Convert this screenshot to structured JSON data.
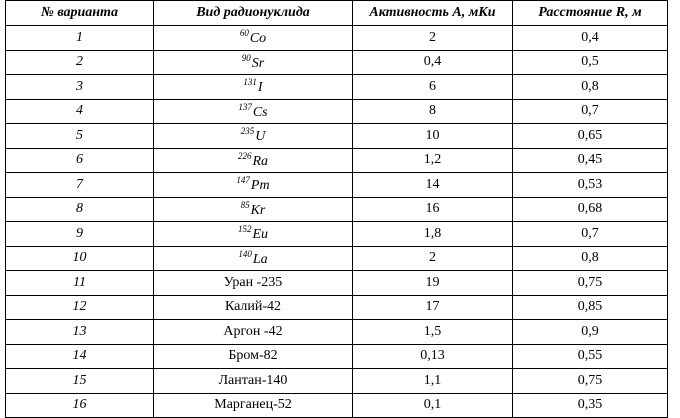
{
  "table": {
    "header": [
      "№ варианта",
      "Вид радионуклида",
      "Активность А, мКи",
      "Расстояние R, м"
    ],
    "rows": [
      {
        "n": "1",
        "mass": "60",
        "symbol": "Co",
        "activity": "2",
        "distance": "0,4"
      },
      {
        "n": "2",
        "mass": "90",
        "symbol": "Sr",
        "activity": "0,4",
        "distance": "0,5"
      },
      {
        "n": "3",
        "mass": "131",
        "symbol": "I",
        "activity": "6",
        "distance": "0,8"
      },
      {
        "n": "4",
        "mass": "137",
        "symbol": "Cs",
        "activity": "8",
        "distance": "0,7"
      },
      {
        "n": "5",
        "mass": "235",
        "symbol": "U",
        "activity": "10",
        "distance": "0,65"
      },
      {
        "n": "6",
        "mass": "226",
        "symbol": "Ra",
        "activity": "1,2",
        "distance": "0,45"
      },
      {
        "n": "7",
        "mass": "147",
        "symbol": "Pm",
        "activity": "14",
        "distance": "0,53"
      },
      {
        "n": "8",
        "mass": "85",
        "symbol": "Kr",
        "activity": "16",
        "distance": "0,68"
      },
      {
        "n": "9",
        "mass": "152",
        "symbol": "Eu",
        "activity": "1,8",
        "distance": "0,7"
      },
      {
        "n": "10",
        "mass": "140",
        "symbol": "La",
        "activity": "2",
        "distance": "0,8"
      },
      {
        "n": "11",
        "name": "Уран -235",
        "activity": "19",
        "distance": "0,75"
      },
      {
        "n": "12",
        "name": "Калий-42",
        "activity": "17",
        "distance": "0,85"
      },
      {
        "n": "13",
        "name": "Аргон -42",
        "activity": "1,5",
        "distance": "0,9"
      },
      {
        "n": "14",
        "name": "Бром-82",
        "activity": "0,13",
        "distance": "0,55"
      },
      {
        "n": "15",
        "name": "Лантан-140",
        "activity": "1,1",
        "distance": "0,75"
      },
      {
        "n": "16",
        "name": "Марганец-52",
        "activity": "0,1",
        "distance": "0,35"
      }
    ]
  }
}
